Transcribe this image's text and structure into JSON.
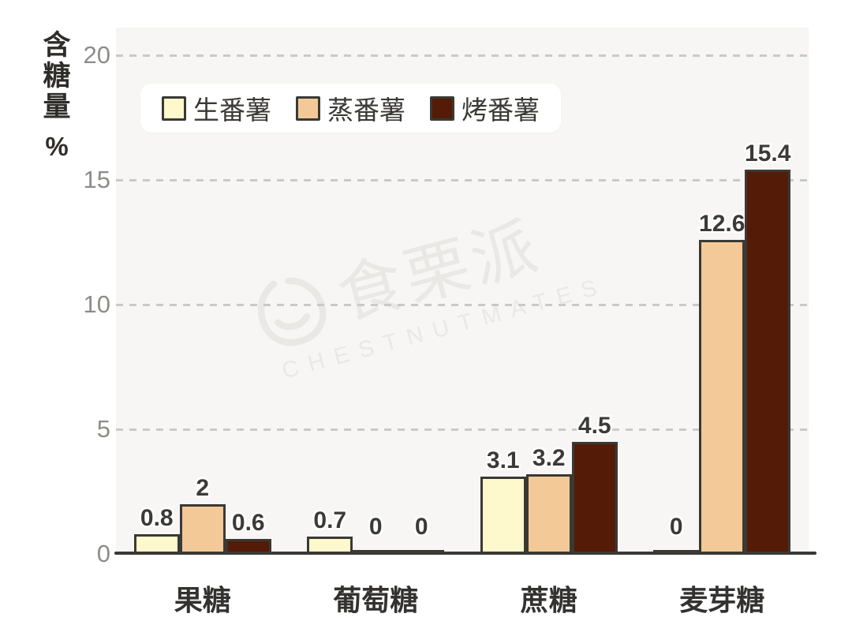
{
  "chart_data": {
    "type": "bar",
    "title": "",
    "ylabel": "含糖量",
    "ylabel_unit": "%",
    "categories": [
      "果糖",
      "葡萄糖",
      "蔗糖",
      "麦芽糖"
    ],
    "series": [
      {
        "name": "生番薯",
        "color": "#FEF9CC",
        "values": [
          0.8,
          0.7,
          3.1,
          0
        ]
      },
      {
        "name": "蒸番薯",
        "color": "#F3C997",
        "values": [
          2,
          0,
          3.2,
          12.6
        ]
      },
      {
        "name": "烤番薯",
        "color": "#541B06",
        "values": [
          0.6,
          0,
          4.5,
          15.4
        ]
      }
    ],
    "ylim": [
      0,
      20
    ],
    "yticks": [
      0,
      5,
      10,
      15,
      20
    ],
    "grid": "horizontal-dashed",
    "legend_position": "top-left"
  },
  "watermark": {
    "cjk": "食栗派",
    "latin": "CHESTNUTMATES",
    "icon": "chestnut-outline-icon"
  },
  "colors": {
    "bar_outline": "#3A3934",
    "axis_line": "#3A3934",
    "grid_line": "#CBC9C6",
    "tick_text": "#8E8C89",
    "value_label_text": "#3B3A37",
    "category_text": "#333230",
    "plot_background": "#F7F6F5",
    "page_background": "#FFFFFF",
    "legend_background": "#FFFFFF"
  }
}
